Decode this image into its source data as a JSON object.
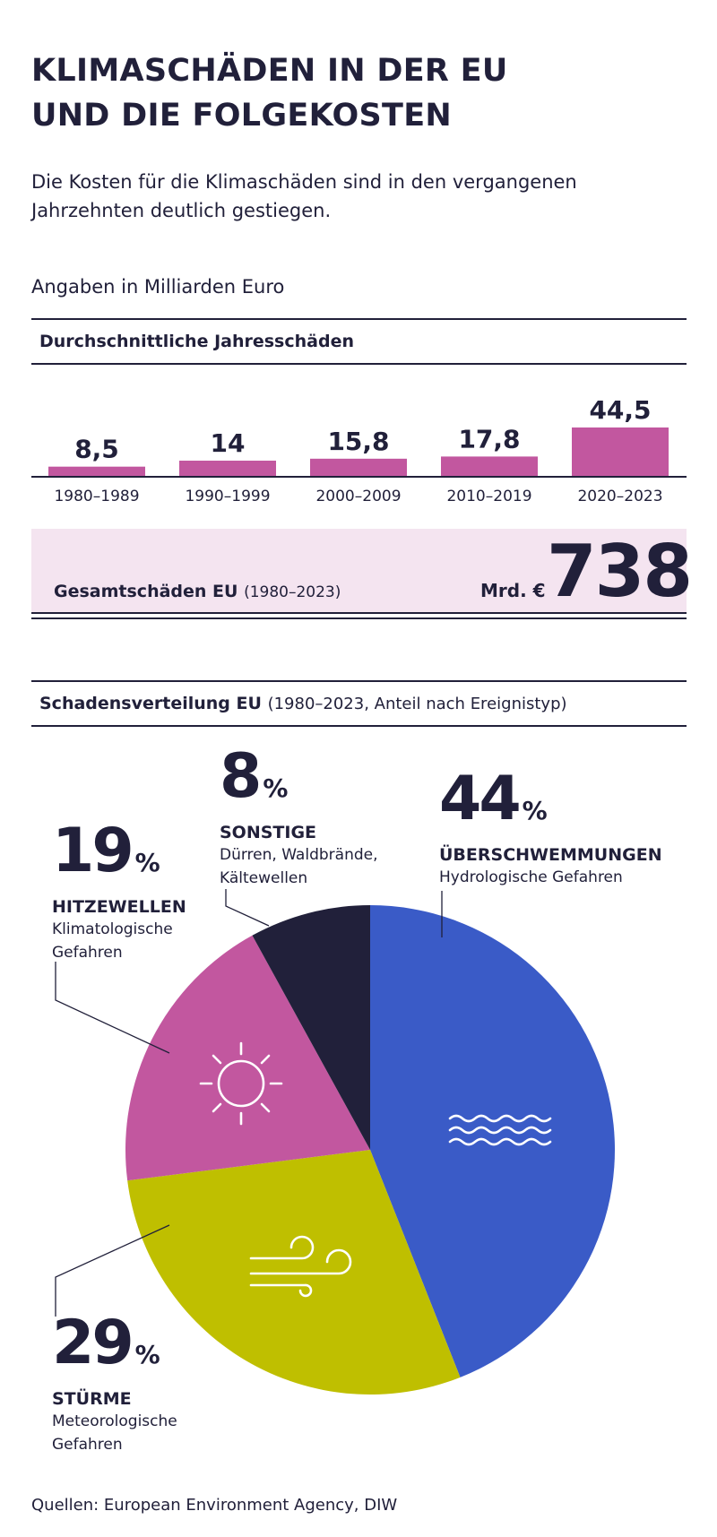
{
  "header": {
    "title_line1": "KLIMASCHÄDEN IN DER EU",
    "title_line2": "UND DIE FOLGEKOSTEN",
    "subtitle_line1": "Die Kosten für die Klimaschäden sind in den vergangenen",
    "subtitle_line2": "Jahrzehnten deutlich gestiegen.",
    "units_note": "Angaben in Milliarden Euro"
  },
  "colors": {
    "ink": "#21203a",
    "bar": "#c2579f",
    "total_bg": "#f4e4f0",
    "flood": "#3a5bc7",
    "storm": "#bfbf00",
    "heat": "#c2579f",
    "other": "#21203a"
  },
  "chart_data": [
    {
      "type": "bar",
      "title": "Durchschnittliche Jahresschäden",
      "xlabel": "",
      "ylabel": "Milliarden Euro",
      "categories": [
        "1980–1989",
        "1990–1999",
        "2000–2009",
        "2010–2019",
        "2020–2023"
      ],
      "values": [
        8.5,
        14,
        15.8,
        17.8,
        44.5
      ],
      "value_labels": [
        "8,5",
        "14",
        "15,8",
        "17,8",
        "44,5"
      ],
      "ylim": [
        0,
        45
      ],
      "grid": false,
      "legend": "none"
    },
    {
      "type": "pie",
      "title": "Schadensverteilung EU",
      "title_note": "(1980–2023, Anteil nach Ereignistyp)",
      "start": "top",
      "direction": "clockwise",
      "slices": [
        {
          "key": "flood",
          "label": "ÜBERSCHWEMMUNGEN",
          "sublabel": "Hydrologische Gefahren",
          "value": 44,
          "icon": "waves-icon"
        },
        {
          "key": "storm",
          "label": "STÜRME",
          "sublabel": "Meteorologische Gefahren",
          "value": 29,
          "icon": "wind-icon"
        },
        {
          "key": "heat",
          "label": "HITZEWELLEN",
          "sublabel": "Klimatologische Gefahren",
          "value": 19,
          "icon": "sun-icon"
        },
        {
          "key": "other",
          "label": "SONSTIGE",
          "sublabel": "Dürren, Waldbrände, Kältewellen",
          "value": 8,
          "icon": null
        }
      ]
    }
  ],
  "bar_section": {
    "heading": "Durchschnittliche Jahresschäden"
  },
  "total": {
    "label": "Gesamtschäden EU",
    "period": "(1980–2023)",
    "unit": "Mrd. €",
    "value": "738"
  },
  "pie_section": {
    "heading": "Schadensverteilung EU",
    "heading_note": "(1980–2023, Anteil nach Ereignistyp)",
    "labels": {
      "other": {
        "pct": "8",
        "sign": "%",
        "name": "SONSTIGE",
        "desc1": "Dürren, Waldbrände,",
        "desc2": "Kältewellen"
      },
      "flood": {
        "pct": "44",
        "sign": "%",
        "name": "ÜBERSCHWEMMUNGEN",
        "desc1": "Hydrologische Gefahren",
        "desc2": ""
      },
      "heat": {
        "pct": "19",
        "sign": "%",
        "name": "HITZEWELLEN",
        "desc1": "Klimatologische",
        "desc2": "Gefahren"
      },
      "storm": {
        "pct": "29",
        "sign": "%",
        "name": "STÜRME",
        "desc1": "Meteorologische",
        "desc2": "Gefahren"
      }
    }
  },
  "footer": {
    "source": "Quellen: European Environment Agency, DIW"
  }
}
